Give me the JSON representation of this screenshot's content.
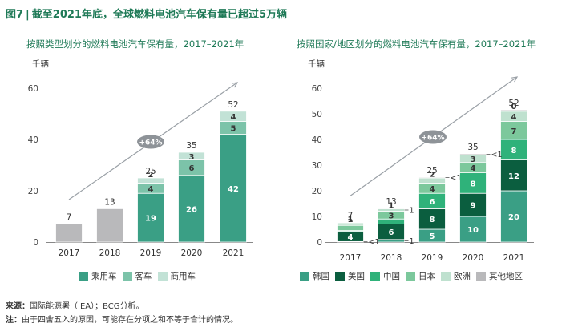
{
  "figure": {
    "label": "图7",
    "separator": "|",
    "title": "截至2021年底，全球燃料电池汽车保有量已超过5万辆"
  },
  "colors": {
    "title_green": "#1f7a57",
    "passenger": "#3a9f85",
    "bus": "#7cc3a9",
    "commercial": "#c2e2d6",
    "gray": "#b9b9bb",
    "korea": "#3a9f85",
    "us": "#0b5e3f",
    "china": "#2fb27a",
    "japan": "#7cc89c",
    "europe": "#bfe1cf",
    "others": "#b9b9bb"
  },
  "notes": {
    "source_label": "来源：",
    "source_text": "国际能源署（IEA）；BCG分析。",
    "remark_label": "注：",
    "remark_text": "由于四舍五入的原因，可能存在分项之和不等于合计的情况。"
  },
  "chart_data": [
    {
      "type": "bar",
      "stacked": true,
      "title": "按照类型划分的燃料电池汽车保有量，2017–2021年",
      "ylabel": "千辆",
      "ylim": [
        0,
        60
      ],
      "yticks": [
        0,
        20,
        40,
        60
      ],
      "categories": [
        "2017",
        "2018",
        "2019",
        "2020",
        "2021"
      ],
      "series": [
        {
          "name": "乘用车",
          "color": "#3a9f85",
          "values": [
            null,
            null,
            19,
            26,
            42
          ],
          "labels": [
            "",
            "",
            "19",
            "26",
            "42"
          ]
        },
        {
          "name": "客车",
          "color": "#7cc3a9",
          "values": [
            null,
            null,
            4,
            6,
            5
          ],
          "labels": [
            "",
            "",
            "4",
            "6",
            "5"
          ]
        },
        {
          "name": "商用车",
          "color": "#c2e2d6",
          "values": [
            null,
            null,
            2,
            3,
            4
          ],
          "labels": [
            "",
            "",
            "2",
            "3",
            "4"
          ]
        },
        {
          "name": "",
          "color": "#b9b9bb",
          "values": [
            7,
            13,
            null,
            null,
            null
          ],
          "labels": [
            "",
            "",
            "",
            "",
            ""
          ]
        }
      ],
      "totals": [
        7,
        13,
        25,
        35,
        52
      ],
      "annotation": "+64%",
      "legend": [
        "乘用车",
        "客车",
        "商用车"
      ],
      "legend_position": "bottom"
    },
    {
      "type": "bar",
      "stacked": true,
      "title": "按照国家/地区划分的燃料电池汽车保有量，2017–2021年",
      "ylabel": "千辆",
      "ylim": [
        0,
        60
      ],
      "yticks": [
        0,
        10,
        20,
        30,
        40,
        50,
        60
      ],
      "categories": [
        "2017",
        "2018",
        "2019",
        "2020",
        "2021"
      ],
      "series": [
        {
          "name": "韩国",
          "color": "#3a9f85",
          "values": [
            0.2,
            1,
            5,
            10,
            20
          ],
          "labels": [
            "",
            "",
            "5",
            "10",
            "20"
          ]
        },
        {
          "name": "美国",
          "color": "#0b5e3f",
          "values": [
            4,
            6,
            8,
            9,
            12
          ],
          "labels": [
            "4",
            "6",
            "8",
            "9",
            "12"
          ]
        },
        {
          "name": "中国",
          "color": "#2fb27a",
          "values": [
            0.3,
            2,
            6,
            8,
            8
          ],
          "labels": [
            "<1",
            "2",
            "6",
            "8",
            "8"
          ]
        },
        {
          "name": "日本",
          "color": "#7cc89c",
          "values": [
            2,
            3,
            4,
            4,
            7
          ],
          "labels": [
            "2",
            "3",
            "4",
            "4",
            "7"
          ]
        },
        {
          "name": "欧洲",
          "color": "#bfe1cf",
          "values": [
            1,
            1,
            2,
            3,
            4
          ],
          "labels": [
            "1",
            "1",
            "2",
            "3",
            "4"
          ]
        },
        {
          "name": "其他地区",
          "color": "#b9b9bb",
          "values": [
            0.2,
            0.2,
            0.3,
            0.4,
            0.5
          ],
          "labels": [
            "",
            "",
            "",
            "",
            "0"
          ]
        }
      ],
      "side_labels": [
        {
          "category": "2017",
          "text": "<1"
        },
        {
          "category": "2018",
          "text": "1"
        },
        {
          "category": "2018",
          "text": "1"
        },
        {
          "category": "2019",
          "text": "<1"
        },
        {
          "category": "2020",
          "text": "<1"
        }
      ],
      "totals": [
        7,
        13,
        25,
        35,
        52
      ],
      "annotation": "+64%",
      "legend": [
        "韩国",
        "美国",
        "中国",
        "日本",
        "欧洲",
        "其他地区"
      ],
      "legend_position": "bottom"
    }
  ]
}
